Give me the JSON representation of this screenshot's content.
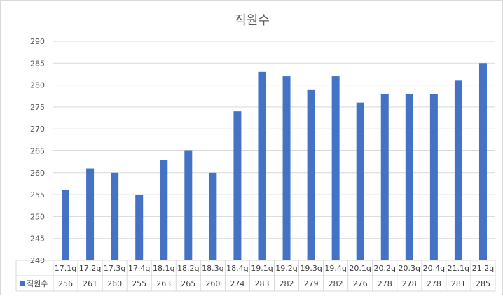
{
  "chart_data": {
    "type": "bar",
    "title": "직원수",
    "categories": [
      "17.1q",
      "17.2q",
      "17.3q",
      "17.4q",
      "18.1q",
      "18.2q",
      "18.3q",
      "18.4q",
      "19.1q",
      "19.2q",
      "19.3q",
      "19.4q",
      "20.1q",
      "20.2q",
      "20.3q",
      "20.4q",
      "21.1q",
      "21.2q"
    ],
    "series": [
      {
        "name": "직원수",
        "values": [
          256,
          261,
          260,
          255,
          263,
          265,
          260,
          274,
          283,
          282,
          279,
          282,
          276,
          278,
          278,
          278,
          281,
          285
        ]
      }
    ],
    "ylim": [
      240,
      290
    ],
    "yticks": [
      240,
      245,
      250,
      255,
      260,
      265,
      270,
      275,
      280,
      285,
      290
    ],
    "grid": true,
    "legend": "data-table",
    "colors": {
      "bar": "#4472c4",
      "grid": "#d9d9d9",
      "text": "#595959"
    }
  }
}
